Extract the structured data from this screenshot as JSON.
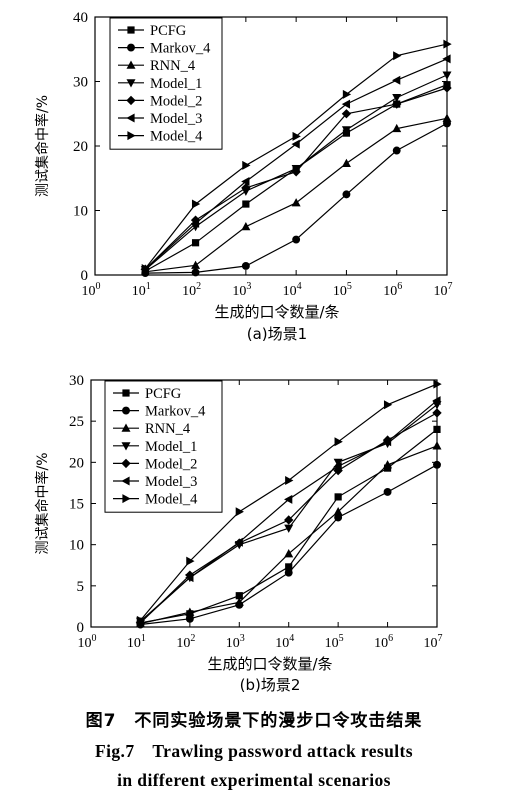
{
  "figure_caption": {
    "cn": "图7　不同实验场景下的漫步口令攻击结果",
    "en_line1": "Fig.7　Trawling password attack results",
    "en_line2": "in different experimental scenarios"
  },
  "chart_data": [
    {
      "type": "line",
      "title": "(a)场景1",
      "xlabel": "生成的口令数量/条",
      "ylabel": "测试集命中率/%",
      "x_scale": "log",
      "x": [
        10,
        100,
        1000,
        10000,
        100000,
        1000000,
        10000000
      ],
      "xlim": [
        1,
        10000000
      ],
      "x_ticks": [
        1,
        10,
        100,
        1000,
        10000,
        100000,
        1000000,
        10000000
      ],
      "ylim": [
        0,
        40
      ],
      "y_ticks": [
        0,
        10,
        20,
        30,
        40
      ],
      "grid": false,
      "legend_position": "top-left",
      "series": [
        {
          "name": "PCFG",
          "marker": "square",
          "values": [
            0.6,
            5.0,
            11.0,
            16.5,
            22.0,
            26.5,
            29.5
          ]
        },
        {
          "name": "Markov_4",
          "marker": "circle",
          "values": [
            0.3,
            0.4,
            1.4,
            5.5,
            12.5,
            19.3,
            23.5
          ]
        },
        {
          "name": "RNN_4",
          "marker": "triangle-up",
          "values": [
            0.5,
            1.5,
            7.5,
            11.2,
            17.3,
            22.7,
            24.3
          ]
        },
        {
          "name": "Model_1",
          "marker": "triangle-down",
          "values": [
            0.8,
            7.5,
            13.0,
            16.5,
            22.5,
            27.5,
            31.0
          ]
        },
        {
          "name": "Model_2",
          "marker": "diamond",
          "values": [
            0.9,
            8.5,
            13.5,
            16.0,
            25.0,
            26.5,
            29.0
          ]
        },
        {
          "name": "Model_3",
          "marker": "triangle-left",
          "values": [
            0.9,
            8.0,
            14.5,
            20.3,
            26.5,
            30.2,
            33.5
          ]
        },
        {
          "name": "Model_4",
          "marker": "triangle-right",
          "values": [
            1.0,
            11.0,
            17.0,
            21.5,
            28.0,
            34.0,
            35.8
          ]
        }
      ]
    },
    {
      "type": "line",
      "title": "(b)场景2",
      "xlabel": "生成的口令数量/条",
      "ylabel": "测试集命中率/%",
      "x_scale": "log",
      "x": [
        10,
        100,
        1000,
        10000,
        100000,
        1000000,
        10000000
      ],
      "xlim": [
        1,
        10000000
      ],
      "x_ticks": [
        1,
        10,
        100,
        1000,
        10000,
        100000,
        1000000,
        10000000
      ],
      "ylim": [
        0,
        30
      ],
      "y_ticks": [
        0,
        5,
        10,
        15,
        20,
        25,
        30
      ],
      "grid": false,
      "legend_position": "top-left",
      "series": [
        {
          "name": "PCFG",
          "marker": "square",
          "values": [
            0.5,
            1.6,
            3.8,
            7.3,
            15.8,
            19.3,
            24.0
          ]
        },
        {
          "name": "Markov_4",
          "marker": "circle",
          "values": [
            0.3,
            1.0,
            2.7,
            6.6,
            13.3,
            16.4,
            19.7
          ]
        },
        {
          "name": "RNN_4",
          "marker": "triangle-up",
          "values": [
            0.4,
            1.8,
            3.0,
            8.9,
            14.0,
            19.7,
            22.0
          ]
        },
        {
          "name": "Model_1",
          "marker": "triangle-down",
          "values": [
            0.7,
            6.0,
            10.0,
            12.0,
            20.0,
            22.3,
            27.0
          ]
        },
        {
          "name": "Model_2",
          "marker": "diamond",
          "values": [
            0.5,
            6.3,
            10.2,
            13.0,
            19.0,
            22.7,
            26.0
          ]
        },
        {
          "name": "Model_3",
          "marker": "triangle-left",
          "values": [
            0.6,
            6.0,
            10.3,
            15.5,
            19.5,
            22.5,
            27.5
          ]
        },
        {
          "name": "Model_4",
          "marker": "triangle-right",
          "values": [
            0.8,
            8.0,
            14.0,
            17.8,
            22.5,
            27.0,
            29.5
          ]
        }
      ]
    }
  ]
}
